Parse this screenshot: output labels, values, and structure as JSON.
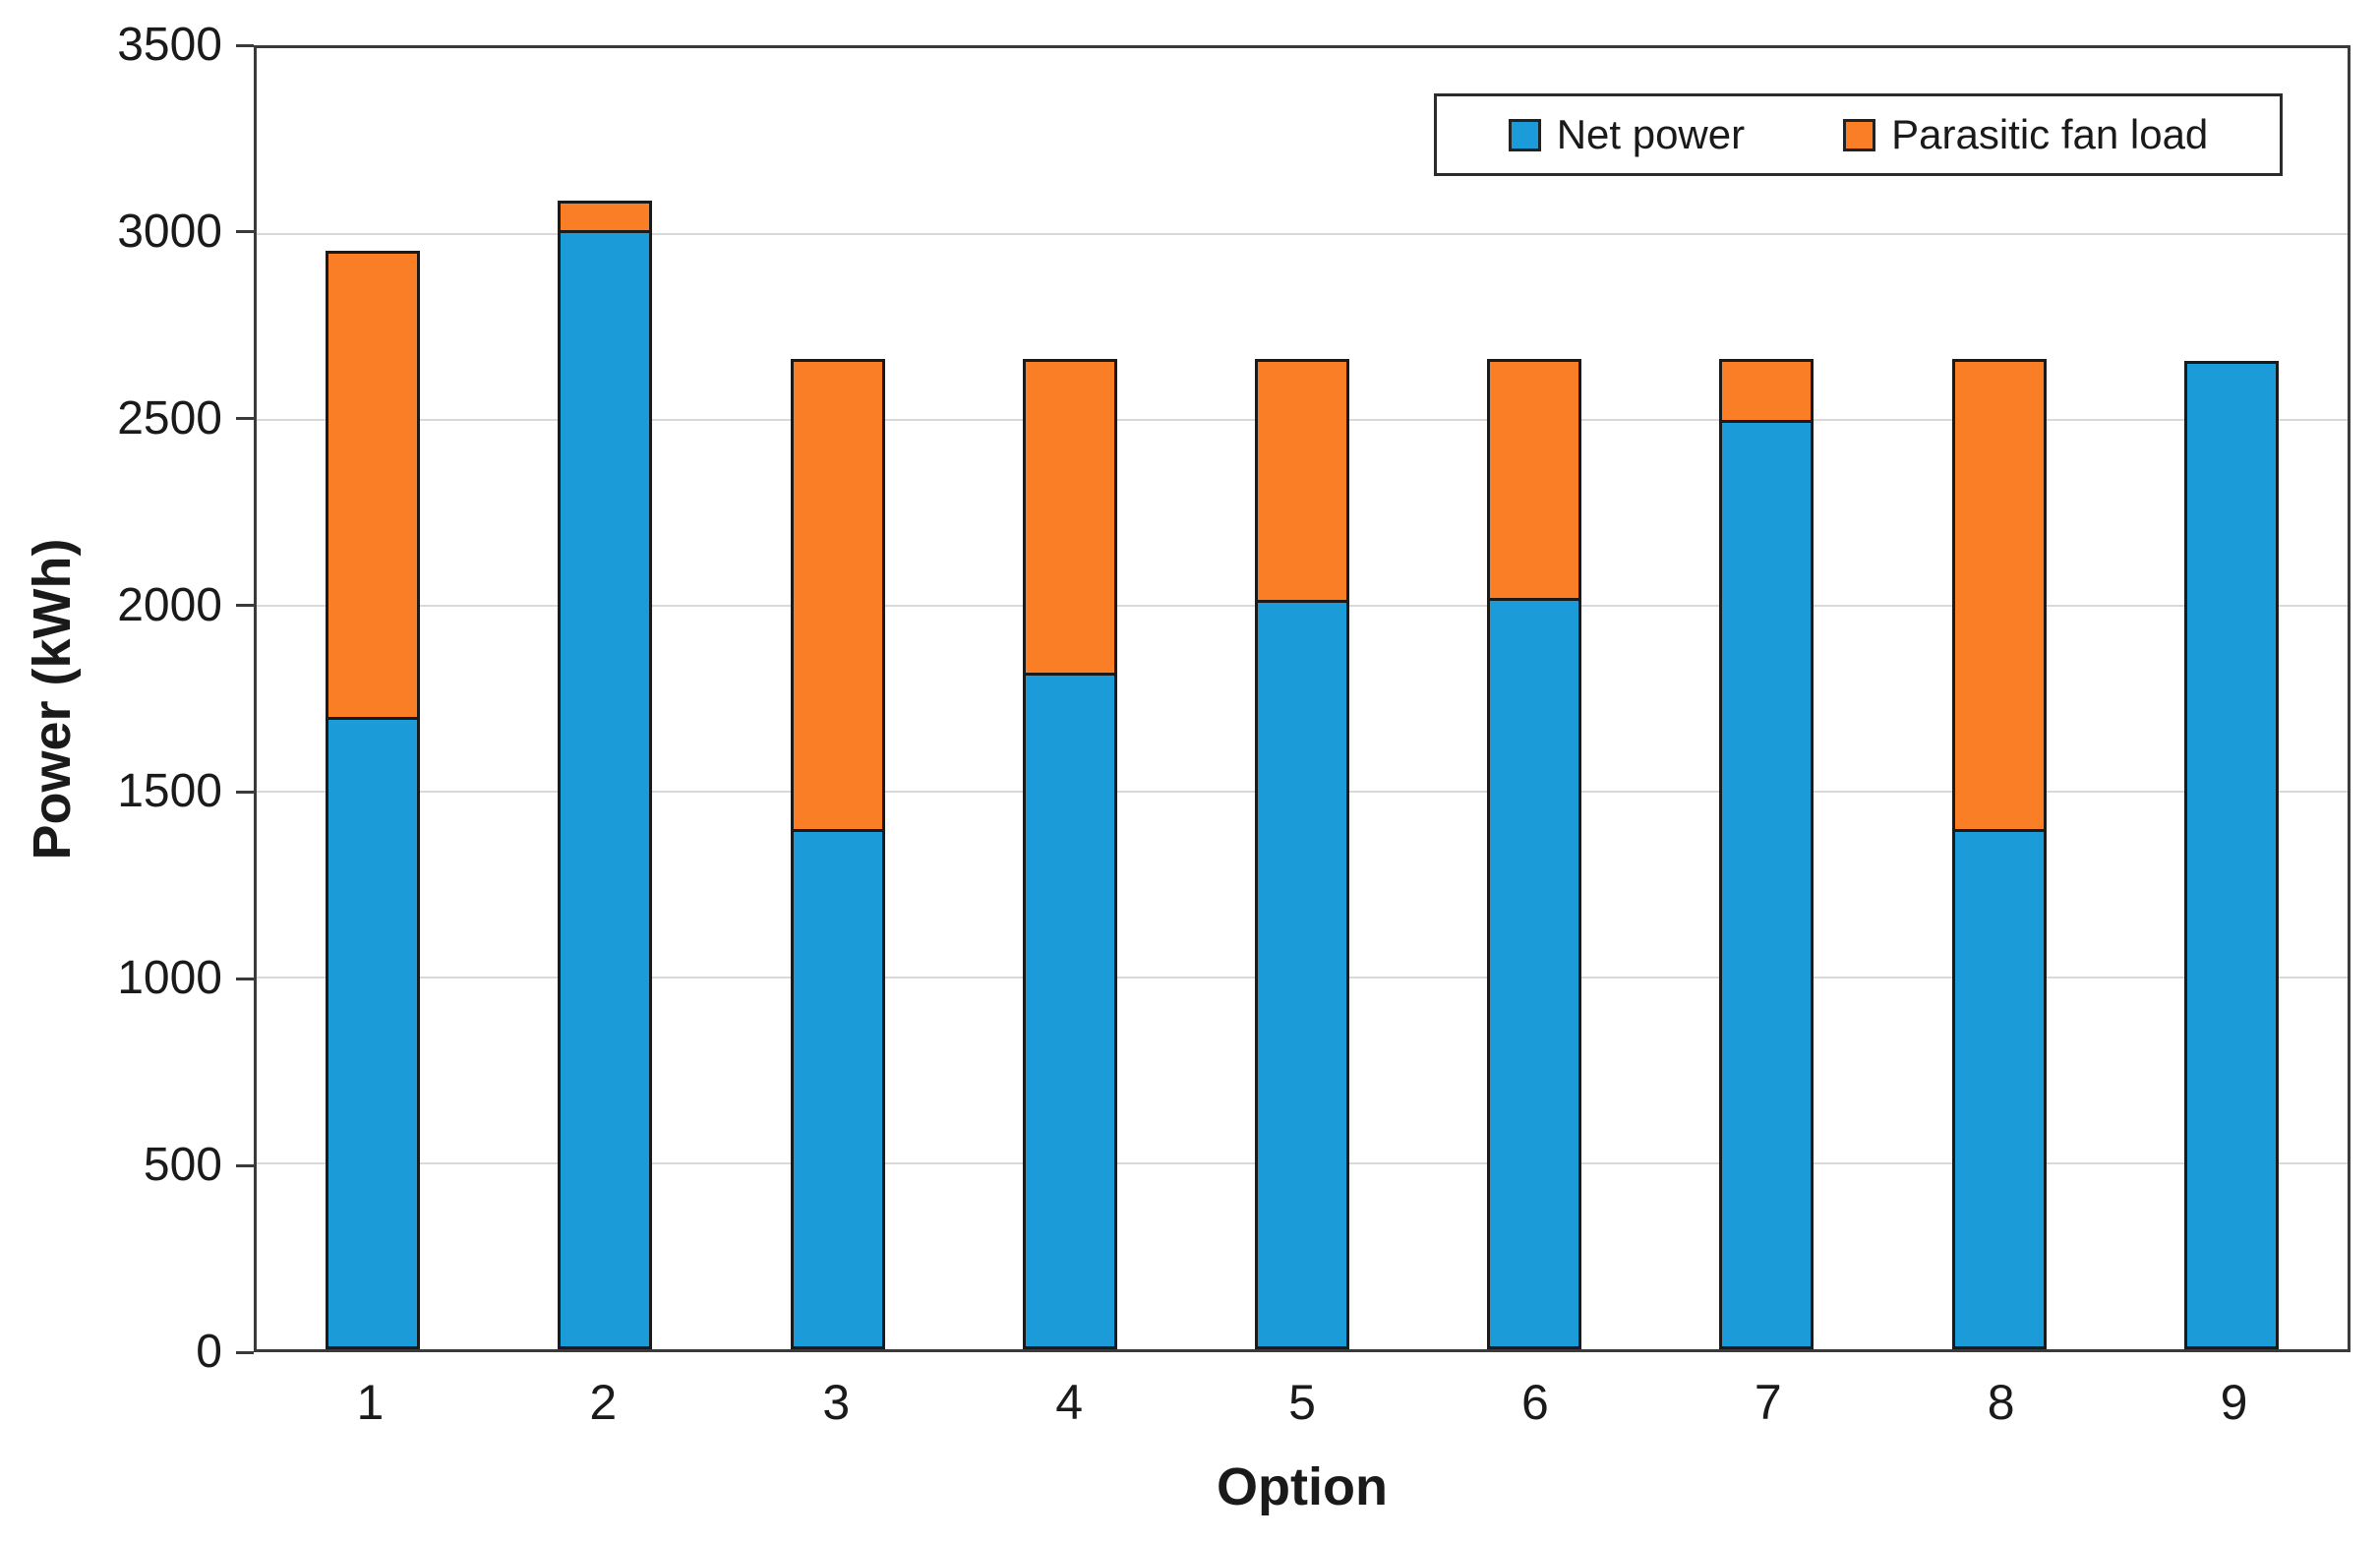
{
  "chart_data": {
    "type": "bar",
    "stacked": true,
    "title": "",
    "xlabel": "Option",
    "ylabel": "Power (kWh)",
    "categories": [
      "1",
      "2",
      "3",
      "4",
      "5",
      "6",
      "7",
      "8",
      "9"
    ],
    "series": [
      {
        "name": "Net power",
        "color": "#1b9cd9",
        "values": [
          1700,
          3010,
          1400,
          1820,
          2015,
          2020,
          2500,
          1400,
          2660
        ]
      },
      {
        "name": "Parasitic fan load",
        "color": "#f97e26",
        "values": [
          1255,
          80,
          1265,
          845,
          650,
          645,
          165,
          1265,
          0
        ]
      }
    ],
    "ylim": [
      0,
      3500
    ],
    "yticks": [
      0,
      500,
      1000,
      1500,
      2000,
      2500,
      3000,
      3500
    ],
    "grid": true,
    "legend_position": "top-right",
    "legend_labels": [
      "Net power",
      "Parasitic fan load"
    ]
  },
  "colors": {
    "net_power": "#1b9cd9",
    "parasitic_fan_load": "#f97e26",
    "bar_border": "#1a1a1a",
    "gridline": "#d9d9d9",
    "axis": "#3a3a3a",
    "text": "#1a1a1a",
    "background": "#ffffff"
  }
}
